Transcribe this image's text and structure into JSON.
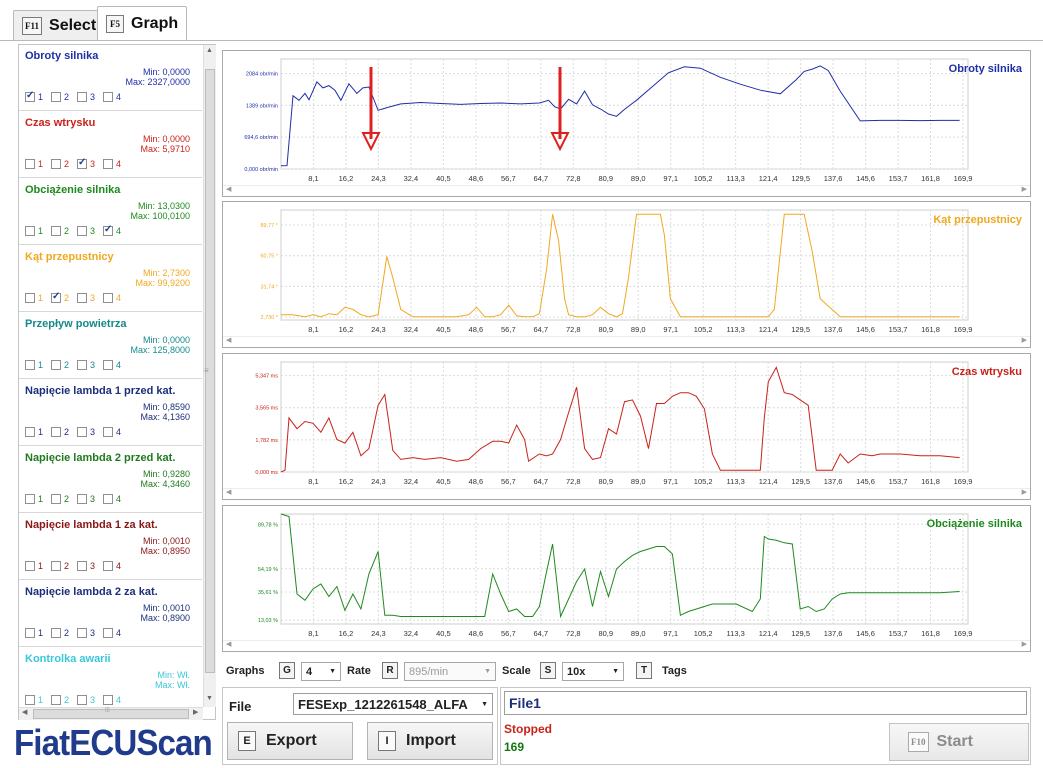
{
  "tabs": [
    {
      "key": "F11",
      "label": "Select",
      "active": false
    },
    {
      "key": "F5",
      "label": "Graph",
      "active": true
    }
  ],
  "channels": [
    {
      "name": "Obroty silnika",
      "min": "Min: 0,0000",
      "max": "Max: 2327,0000",
      "color": "#1f2fa8",
      "checked": 1
    },
    {
      "name": "Czas wtrysku",
      "min": "Min: 0,0000",
      "max": "Max: 5,9710",
      "color": "#c9221a",
      "checked": 3
    },
    {
      "name": "Obciążenie silnika",
      "min": "Min: 13,0300",
      "max": "Max: 100,0100",
      "color": "#1e8a1e",
      "checked": 4
    },
    {
      "name": "Kąt przepustnicy",
      "min": "Min: 2,7300",
      "max": "Max: 99,9200",
      "color": "#f0a81e",
      "checked": 2
    },
    {
      "name": "Przepływ powietrza",
      "min": "Min: 0,0000",
      "max": "Max: 125,8000",
      "color": "#168a8a",
      "checked": 0
    },
    {
      "name": "Napięcie lambda 1 przed kat.",
      "min": "Min: 0,8590",
      "max": "Max: 4,1360",
      "color": "#1c2f79",
      "checked": 0
    },
    {
      "name": "Napięcie lambda 2 przed kat.",
      "min": "Min: 0,9280",
      "max": "Max: 4,3460",
      "color": "#1e7a1e",
      "checked": 0
    },
    {
      "name": "Napięcie lambda 1 za kat.",
      "min": "Min: 0,0010",
      "max": "Max: 0,8950",
      "color": "#8a1616",
      "checked": 0
    },
    {
      "name": "Napięcie lambda 2 za kat.",
      "min": "Min: 0,0010",
      "max": "Max: 0,8900",
      "color": "#1c2f79",
      "checked": 0
    },
    {
      "name": "Kontrolka awarii",
      "min": "Min: Wł.",
      "max": "Max: Wł.",
      "color": "#38c8d8",
      "checked": 0
    }
  ],
  "checkbox_labels": [
    "1",
    "2",
    "3",
    "4"
  ],
  "chart_data": [
    {
      "type": "line",
      "title": "Obroty silnika",
      "color": "#1f2fa8",
      "x_ticks": [
        "8,1",
        "16,2",
        "24,3",
        "32,4",
        "40,5",
        "48,6",
        "56,7",
        "64,7",
        "72,8",
        "80,9",
        "89,0",
        "97,1",
        "105,2",
        "113,3",
        "121,4",
        "129,5",
        "137,6",
        "145,6",
        "153,7",
        "161,8",
        "169,9"
      ],
      "y_ticks": [
        "0,000 obr/min",
        "694,6 obr/min",
        "1389 obr/min",
        "2084 obr/min"
      ],
      "y_tick_values": [
        0,
        694.6,
        1389,
        2084
      ],
      "ylim": [
        0,
        2400
      ],
      "xlim": [
        0,
        172
      ],
      "x": [
        0,
        1.5,
        3,
        4.5,
        6,
        7,
        9,
        10.5,
        12,
        13.5,
        15,
        17,
        19,
        20.5,
        22,
        24.3,
        27,
        30,
        35,
        40,
        45,
        50,
        55,
        60,
        64.7,
        67,
        68.5,
        70,
        72,
        74,
        76,
        78,
        80,
        82,
        84,
        86,
        89,
        93,
        97,
        101,
        105,
        110,
        115,
        120,
        125,
        129,
        131,
        133,
        135,
        137,
        140,
        145,
        150,
        155,
        160,
        165,
        169.9
      ],
      "y": [
        70,
        74,
        1600,
        1500,
        1650,
        1510,
        1900,
        1770,
        1820,
        1720,
        1500,
        1860,
        1650,
        1770,
        1790,
        1280,
        1350,
        1420,
        1450,
        1430,
        1410,
        1430,
        1440,
        1420,
        1440,
        1500,
        1360,
        1310,
        1520,
        1420,
        1700,
        1400,
        1310,
        1200,
        1150,
        1300,
        1500,
        1800,
        2100,
        2230,
        2200,
        2000,
        1850,
        1720,
        1640,
        1950,
        2130,
        2180,
        2250,
        2150,
        1700,
        1050,
        1060,
        1060,
        1055,
        1060,
        1060
      ]
    },
    {
      "type": "line",
      "title": "Kąt przepustnicy",
      "color": "#f0a81e",
      "x_ticks": [
        "8,1",
        "16,2",
        "24,3",
        "32,4",
        "40,5",
        "48,6",
        "56,7",
        "64,7",
        "72,8",
        "80,9",
        "89,0",
        "97,1",
        "105,2",
        "113,3",
        "121,4",
        "129,5",
        "137,6",
        "145,6",
        "153,7",
        "161,8",
        "169,9"
      ],
      "y_ticks": [
        "2,730 °",
        "31,74 °",
        "60,75 °",
        "89,77 °"
      ],
      "y_tick_values": [
        2.73,
        31.74,
        60.75,
        89.77
      ],
      "ylim": [
        0,
        104
      ],
      "xlim": [
        0,
        172
      ],
      "x": [
        0,
        3,
        6,
        8,
        10,
        12,
        14,
        16,
        18,
        20,
        22,
        24.3,
        26.5,
        28,
        30,
        33,
        36,
        40,
        44,
        47,
        49,
        51,
        53,
        55,
        57,
        59,
        61,
        63,
        64.7,
        66.5,
        68,
        69.5,
        71,
        72,
        74,
        76,
        78,
        80,
        82,
        84,
        85.5,
        87,
        89,
        91,
        93,
        95,
        96,
        97.5,
        100,
        103,
        105.2,
        110,
        115,
        120,
        122,
        123.5,
        126,
        128,
        129,
        130,
        131,
        133,
        135,
        140,
        145,
        150,
        155,
        160,
        165,
        169.9
      ],
      "y": [
        5,
        5,
        3,
        5,
        3,
        6,
        5,
        12,
        10,
        5,
        3,
        5,
        60,
        40,
        10,
        3,
        3,
        3,
        3,
        5,
        12,
        3,
        3,
        5,
        14,
        4,
        3,
        3,
        6,
        48,
        100,
        75,
        20,
        5,
        3,
        3,
        5,
        12,
        6,
        3,
        6,
        40,
        100,
        100,
        100,
        100,
        80,
        20,
        3,
        3,
        3,
        3,
        3,
        3,
        3,
        10,
        100,
        100,
        100,
        100,
        100,
        65,
        20,
        3,
        3,
        3,
        3,
        3,
        3,
        3
      ]
    },
    {
      "type": "line",
      "title": "Czas wtrysku",
      "color": "#c9221a",
      "x_ticks": [
        "8,1",
        "16,2",
        "24,3",
        "32,4",
        "40,5",
        "48,6",
        "56,7",
        "64,7",
        "72,8",
        "80,9",
        "89,0",
        "97,1",
        "105,2",
        "113,3",
        "121,4",
        "129,5",
        "137,6",
        "145,6",
        "153,7",
        "161,8",
        "169,9"
      ],
      "y_ticks": [
        "0,000 ms",
        "1,782 ms",
        "3,565 ms",
        "5,347 ms"
      ],
      "y_tick_values": [
        0,
        1.782,
        3.565,
        5.347
      ],
      "ylim": [
        0,
        6.1
      ],
      "xlim": [
        0,
        172
      ],
      "x": [
        0,
        1,
        2,
        4,
        6,
        8,
        10,
        12,
        14,
        16,
        18,
        20,
        22,
        24.3,
        26,
        28,
        30,
        33,
        36,
        40,
        44,
        47,
        50,
        53,
        55,
        57,
        59,
        61,
        62,
        64.7,
        66.5,
        68,
        70,
        72,
        74,
        76,
        78,
        80,
        82,
        84,
        86,
        88,
        90,
        92,
        94,
        96,
        98,
        100,
        102,
        104,
        106,
        108,
        110,
        112,
        114,
        116,
        118,
        120,
        121,
        122,
        124,
        126,
        128,
        130,
        132,
        134,
        136,
        138,
        140,
        142,
        145,
        148,
        150,
        155,
        160,
        165,
        169.9
      ],
      "y": [
        0,
        0.1,
        3,
        2.4,
        2.8,
        2.7,
        2.2,
        3,
        1.8,
        1.6,
        2.2,
        0.9,
        1.3,
        3.7,
        4.3,
        1.2,
        0.7,
        0.8,
        0.7,
        0.8,
        0.6,
        0.7,
        1.3,
        1.7,
        1.7,
        1.6,
        2.6,
        1.8,
        0.6,
        1,
        0.9,
        1,
        1.8,
        3.3,
        4.7,
        1.3,
        0.7,
        0.8,
        2.4,
        2.1,
        3.9,
        4,
        3.1,
        1.3,
        3.8,
        3.8,
        4.2,
        4.4,
        4.4,
        4.2,
        3.5,
        1,
        0.1,
        0.1,
        0.1,
        0.1,
        0.1,
        0.1,
        3,
        5,
        5.8,
        4.4,
        4.3,
        4,
        3.7,
        0.1,
        0.1,
        0.1,
        1,
        0.5,
        1,
        0.9,
        1,
        1,
        0.9,
        0.9,
        0.8
      ]
    },
    {
      "type": "line",
      "title": "Obciążenie silnika",
      "color": "#1e8a1e",
      "x_ticks": [
        "8,1",
        "16,2",
        "24,3",
        "32,4",
        "40,5",
        "48,6",
        "56,7",
        "64,7",
        "72,8",
        "80,9",
        "89,0",
        "97,1",
        "105,2",
        "113,3",
        "121,4",
        "129,5",
        "137,6",
        "145,6",
        "153,7",
        "161,8",
        "169,9"
      ],
      "y_ticks": [
        "13,03 %",
        "35,61 %",
        "54,19 %",
        "89,78 %"
      ],
      "y_tick_values": [
        13.03,
        35.61,
        54.19,
        89.78
      ],
      "ylim": [
        10,
        98
      ],
      "xlim": [
        0,
        172
      ],
      "x": [
        0,
        2,
        4,
        6,
        8,
        10,
        12,
        14,
        16,
        18,
        20,
        22,
        24.3,
        26,
        28,
        30,
        33,
        36,
        40,
        44,
        47,
        49,
        51,
        53,
        55,
        57,
        59,
        61,
        63,
        64.7,
        66.5,
        68,
        70,
        72,
        74,
        76,
        78,
        80,
        82,
        84,
        86,
        88,
        90,
        92,
        94,
        96,
        98,
        100,
        102,
        104,
        106,
        108,
        110,
        114,
        118,
        120,
        121,
        122,
        124,
        126,
        128,
        130,
        132,
        134,
        136,
        138,
        140,
        142,
        145,
        148,
        150,
        155,
        160,
        165,
        169.9
      ],
      "y": [
        98,
        96,
        34,
        29,
        38,
        42,
        32,
        40,
        21,
        34,
        22,
        50,
        68,
        17,
        17,
        16,
        16,
        16,
        16,
        16,
        16,
        16,
        16,
        50,
        34,
        20,
        22,
        16,
        16,
        24,
        52,
        74,
        16,
        30,
        44,
        54,
        24,
        52,
        32,
        54,
        60,
        65,
        68,
        70,
        72,
        72,
        66,
        17,
        20,
        22,
        24,
        26,
        26,
        26,
        20,
        30,
        80,
        78,
        77,
        75,
        74,
        22,
        24,
        20,
        22,
        30,
        34,
        35,
        35,
        35,
        35,
        35,
        35,
        35,
        36
      ]
    }
  ],
  "markers_color": "#e02020",
  "controls": {
    "graphs_label": "Graphs",
    "graphs_key": "G",
    "graphs_value": "4",
    "rate_label": "Rate",
    "rate_key": "R",
    "rate_value": "895/min",
    "scale_label": "Scale",
    "scale_key": "S",
    "scale_value": "10x",
    "tags_key": "T",
    "tags_label": "Tags"
  },
  "file": {
    "label": "File",
    "selected": "FESExp_1212261548_ALFA",
    "export_key": "E",
    "export_label": "Export",
    "import_key": "I",
    "import_label": "Import"
  },
  "status": {
    "file_name": "File1",
    "state": "Stopped",
    "count": "169",
    "start_key": "F10",
    "start_label": "Start"
  },
  "logo_text": "FiatECUScan"
}
